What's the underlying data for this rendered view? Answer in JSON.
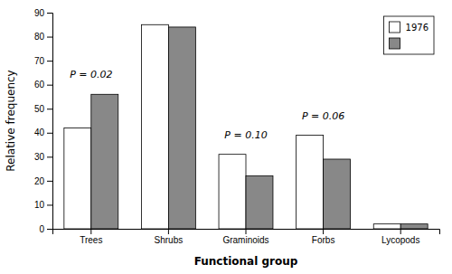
{
  "chart_data": {
    "type": "bar",
    "xlabel": "Functional group",
    "ylabel": "Relative frequency",
    "categories": [
      "Trees",
      "Shrubs",
      "Graminoids",
      "Forbs",
      "Lycopods"
    ],
    "series": [
      {
        "name": "1976",
        "color": "#ffffff",
        "values": [
          42,
          85,
          31,
          39,
          2
        ]
      },
      {
        "color": "#888888",
        "values": [
          56,
          84,
          22,
          29,
          2
        ]
      }
    ],
    "ylim": [
      0,
      90
    ],
    "yticks": [
      0,
      10,
      20,
      30,
      40,
      50,
      60,
      70,
      80,
      90
    ],
    "grid": false,
    "legend": "upper right",
    "annotations": [
      {
        "text": "P = 0.02",
        "x": "Trees",
        "y": 62
      },
      {
        "text": "P = 0.10",
        "x": "Graminoids",
        "y": 37
      },
      {
        "text": "P = 0.06",
        "x": "Forbs",
        "y": 45
      }
    ]
  }
}
